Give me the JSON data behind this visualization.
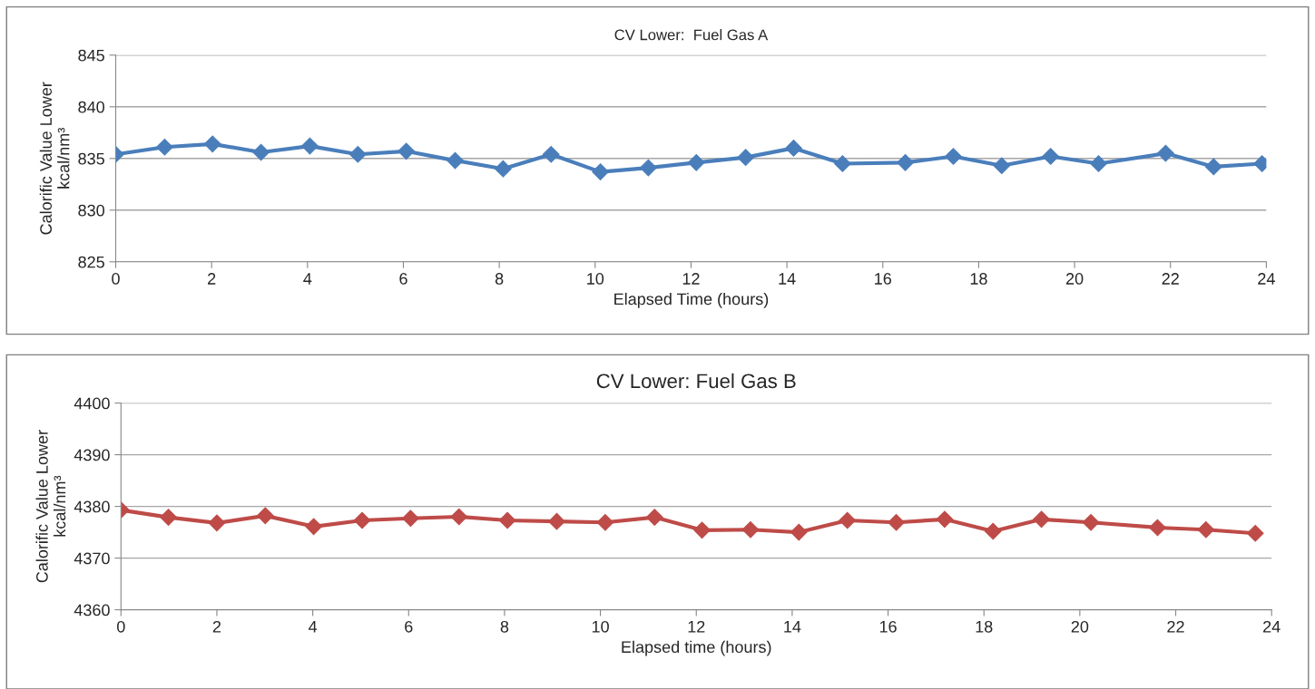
{
  "chart_data": [
    {
      "type": "line",
      "title": "CV Lower:  Fuel Gas A",
      "xlabel": "Elapsed Time (hours)",
      "ylabel": "Calorific Value Lower\nkcal/nm³",
      "marker": "diamond",
      "line_style": "solid",
      "grid": "y",
      "series": [
        {
          "color": "#4a7ebb",
          "x": [
            0,
            1.02,
            2.02,
            3.03,
            4.05,
            5.05,
            6.06,
            7.08,
            8.08,
            9.08,
            10.11,
            11.11,
            12.11,
            13.14,
            14.14,
            15.16,
            16.47,
            17.47,
            18.48,
            19.5,
            20.5,
            21.9,
            22.9,
            23.91
          ],
          "values": [
            835.4,
            836.1,
            836.4,
            835.6,
            836.2,
            835.4,
            835.7,
            834.8,
            834.0,
            835.4,
            833.7,
            834.1,
            834.6,
            835.1,
            836.0,
            834.5,
            834.6,
            835.2,
            834.3,
            835.2,
            834.5,
            835.5,
            834.2,
            834.5
          ]
        }
      ],
      "xlim": [
        0,
        24
      ],
      "xticks": [
        0,
        2,
        4,
        6,
        8,
        10,
        12,
        14,
        16,
        18,
        20,
        22,
        24
      ],
      "ylim": [
        825,
        845
      ],
      "yticks": [
        825,
        830,
        835,
        840,
        845
      ]
    },
    {
      "type": "line",
      "title": "CV Lower: Fuel Gas B",
      "xlabel": "Elapsed time (hours)",
      "ylabel": "Calorific Value Lower\nkcal/nm³",
      "marker": "diamond",
      "line_style": "solid",
      "grid": "y",
      "series": [
        {
          "color": "#be4b48",
          "x": [
            0,
            0.99,
            2.0,
            3.01,
            4.02,
            5.03,
            6.04,
            7.05,
            8.06,
            9.09,
            10.1,
            11.13,
            12.12,
            13.13,
            14.14,
            15.15,
            16.17,
            17.18,
            18.19,
            19.2,
            20.23,
            21.62,
            22.63,
            23.66
          ],
          "values": [
            4379.3,
            4377.9,
            4376.8,
            4378.2,
            4376.1,
            4377.3,
            4377.7,
            4378.0,
            4377.3,
            4377.1,
            4376.9,
            4377.9,
            4375.4,
            4375.5,
            4375.0,
            4377.3,
            4376.9,
            4377.5,
            4375.2,
            4377.5,
            4376.9,
            4375.9,
            4375.5,
            4374.8
          ]
        }
      ],
      "xlim": [
        0,
        24
      ],
      "xticks": [
        0,
        2,
        4,
        6,
        8,
        10,
        12,
        14,
        16,
        18,
        20,
        22,
        24
      ],
      "ylim": [
        4360,
        4400
      ],
      "yticks": [
        4360,
        4370,
        4380,
        4390,
        4400
      ]
    }
  ]
}
